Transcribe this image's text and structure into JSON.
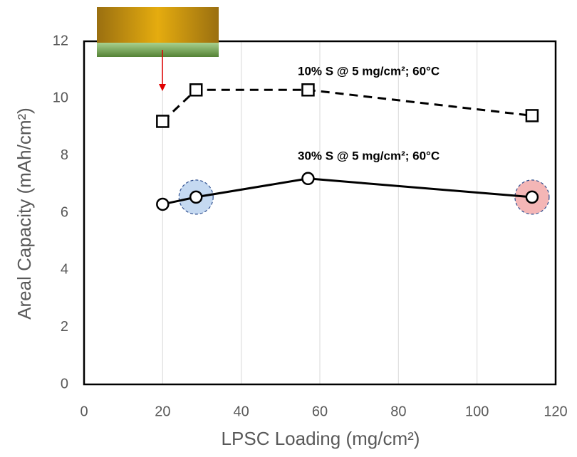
{
  "chart_data": {
    "type": "line",
    "x_label": "LPSC Loading (mg/cm²)",
    "y_label": "Areal Capacity (mAh/cm²)",
    "xlim": [
      0,
      120
    ],
    "xticks": [
      0,
      20,
      40,
      60,
      80,
      100,
      120
    ],
    "ylim": [
      0,
      12
    ],
    "yticks": [
      0,
      2,
      4,
      6,
      8,
      10,
      12
    ],
    "grid": "x",
    "series": [
      {
        "name": "10% S @ 5 mg/cm²; 60°C",
        "color": "#000000",
        "dashed": true,
        "marker": "square",
        "x": [
          20,
          28.5,
          57,
          114
        ],
        "values": [
          9.2,
          10.3,
          10.3,
          9.4
        ],
        "highlight_colors": [
          null,
          null,
          null,
          null
        ]
      },
      {
        "name": "30% S @ 5 mg/cm²; 60°C",
        "color": "#000000",
        "dashed": false,
        "marker": "circle",
        "x": [
          20,
          28.5,
          57,
          114
        ],
        "values": [
          6.3,
          6.55,
          7.2,
          6.55
        ],
        "highlight_colors": [
          null,
          "#c5d9f1",
          null,
          "#f4b6b6"
        ]
      }
    ]
  }
}
